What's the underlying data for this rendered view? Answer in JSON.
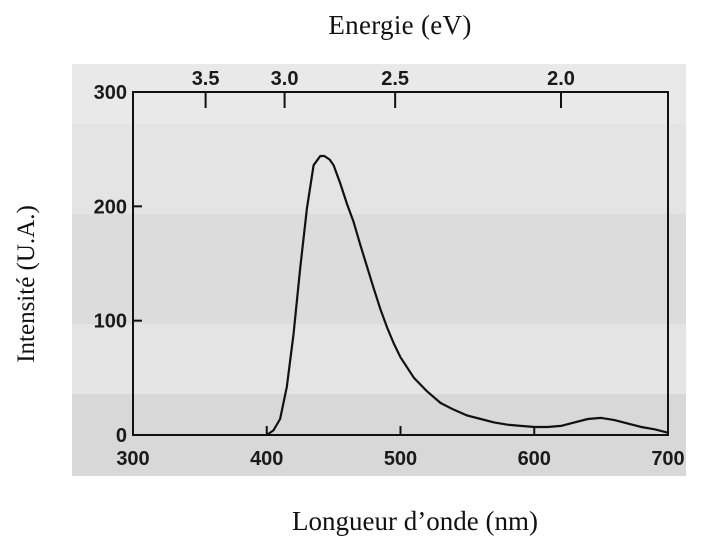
{
  "chart_data": {
    "type": "line",
    "title": "",
    "top_axis_label": "Energie (eV)",
    "xlabel": "Longueur d’onde (nm)",
    "ylabel": "Intensité (U.A.)",
    "xlim": [
      300,
      700
    ],
    "ylim": [
      0,
      300
    ],
    "x_ticks": [
      300,
      400,
      500,
      600,
      700
    ],
    "y_ticks": [
      0,
      100,
      200,
      300
    ],
    "top_ticks": [
      {
        "label": "3.5",
        "energy_eV": 3.5
      },
      {
        "label": "3.0",
        "energy_eV": 3.0
      },
      {
        "label": "2.5",
        "energy_eV": 2.5
      },
      {
        "label": "2.0",
        "energy_eV": 2.0
      }
    ],
    "grid": false,
    "series": [
      {
        "x": [
          400,
          405,
          410,
          415,
          420,
          425,
          430,
          435,
          440,
          443,
          447,
          450,
          455,
          460,
          465,
          470,
          475,
          480,
          485,
          490,
          495,
          500,
          510,
          520,
          530,
          540,
          550,
          560,
          570,
          580,
          590,
          600,
          610,
          620,
          630,
          640,
          650,
          660,
          670,
          680,
          690,
          700
        ],
        "y": [
          0,
          4,
          14,
          42,
          88,
          146,
          198,
          236,
          244,
          244,
          241,
          236,
          220,
          202,
          186,
          166,
          147,
          128,
          110,
          94,
          80,
          68,
          50,
          38,
          28,
          22,
          17,
          14,
          11,
          9,
          8,
          7,
          7,
          8,
          11,
          14,
          15,
          13,
          10,
          7,
          5,
          2
        ]
      }
    ]
  }
}
